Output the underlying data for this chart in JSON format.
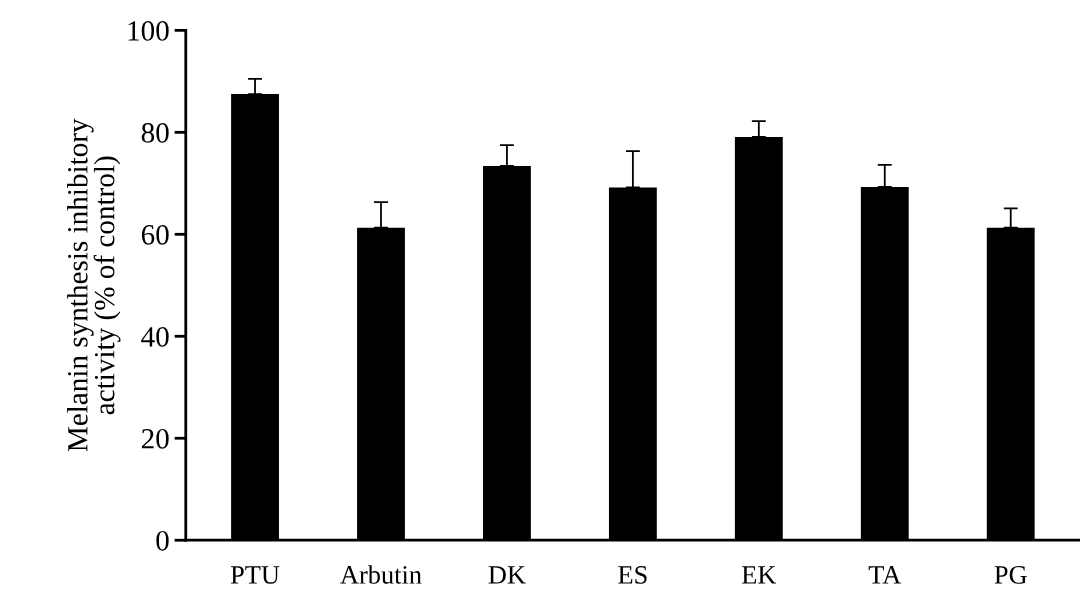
{
  "chart_data": {
    "type": "bar",
    "ylabel": "Melanin synthesis inhibitory\nactivity (% of control)",
    "categories": [
      "PTU",
      "Arbutin",
      "DK",
      "ES",
      "EK",
      "TA",
      "PG"
    ],
    "values": [
      87.5,
      61.3,
      73.4,
      69.2,
      79.1,
      69.3,
      61.3
    ],
    "errors": [
      [
        87.5,
        90.5
      ],
      [
        61.3,
        66.3
      ],
      [
        73.4,
        77.5
      ],
      [
        69.2,
        76.3
      ],
      [
        79.1,
        82.2
      ],
      [
        69.3,
        73.6
      ],
      [
        61.3,
        65.1
      ]
    ],
    "color": "#000000",
    "ylim": [
      0,
      100
    ],
    "yticks": [
      0,
      20,
      40,
      60,
      80,
      100
    ],
    "grid": false,
    "legend": false
  }
}
